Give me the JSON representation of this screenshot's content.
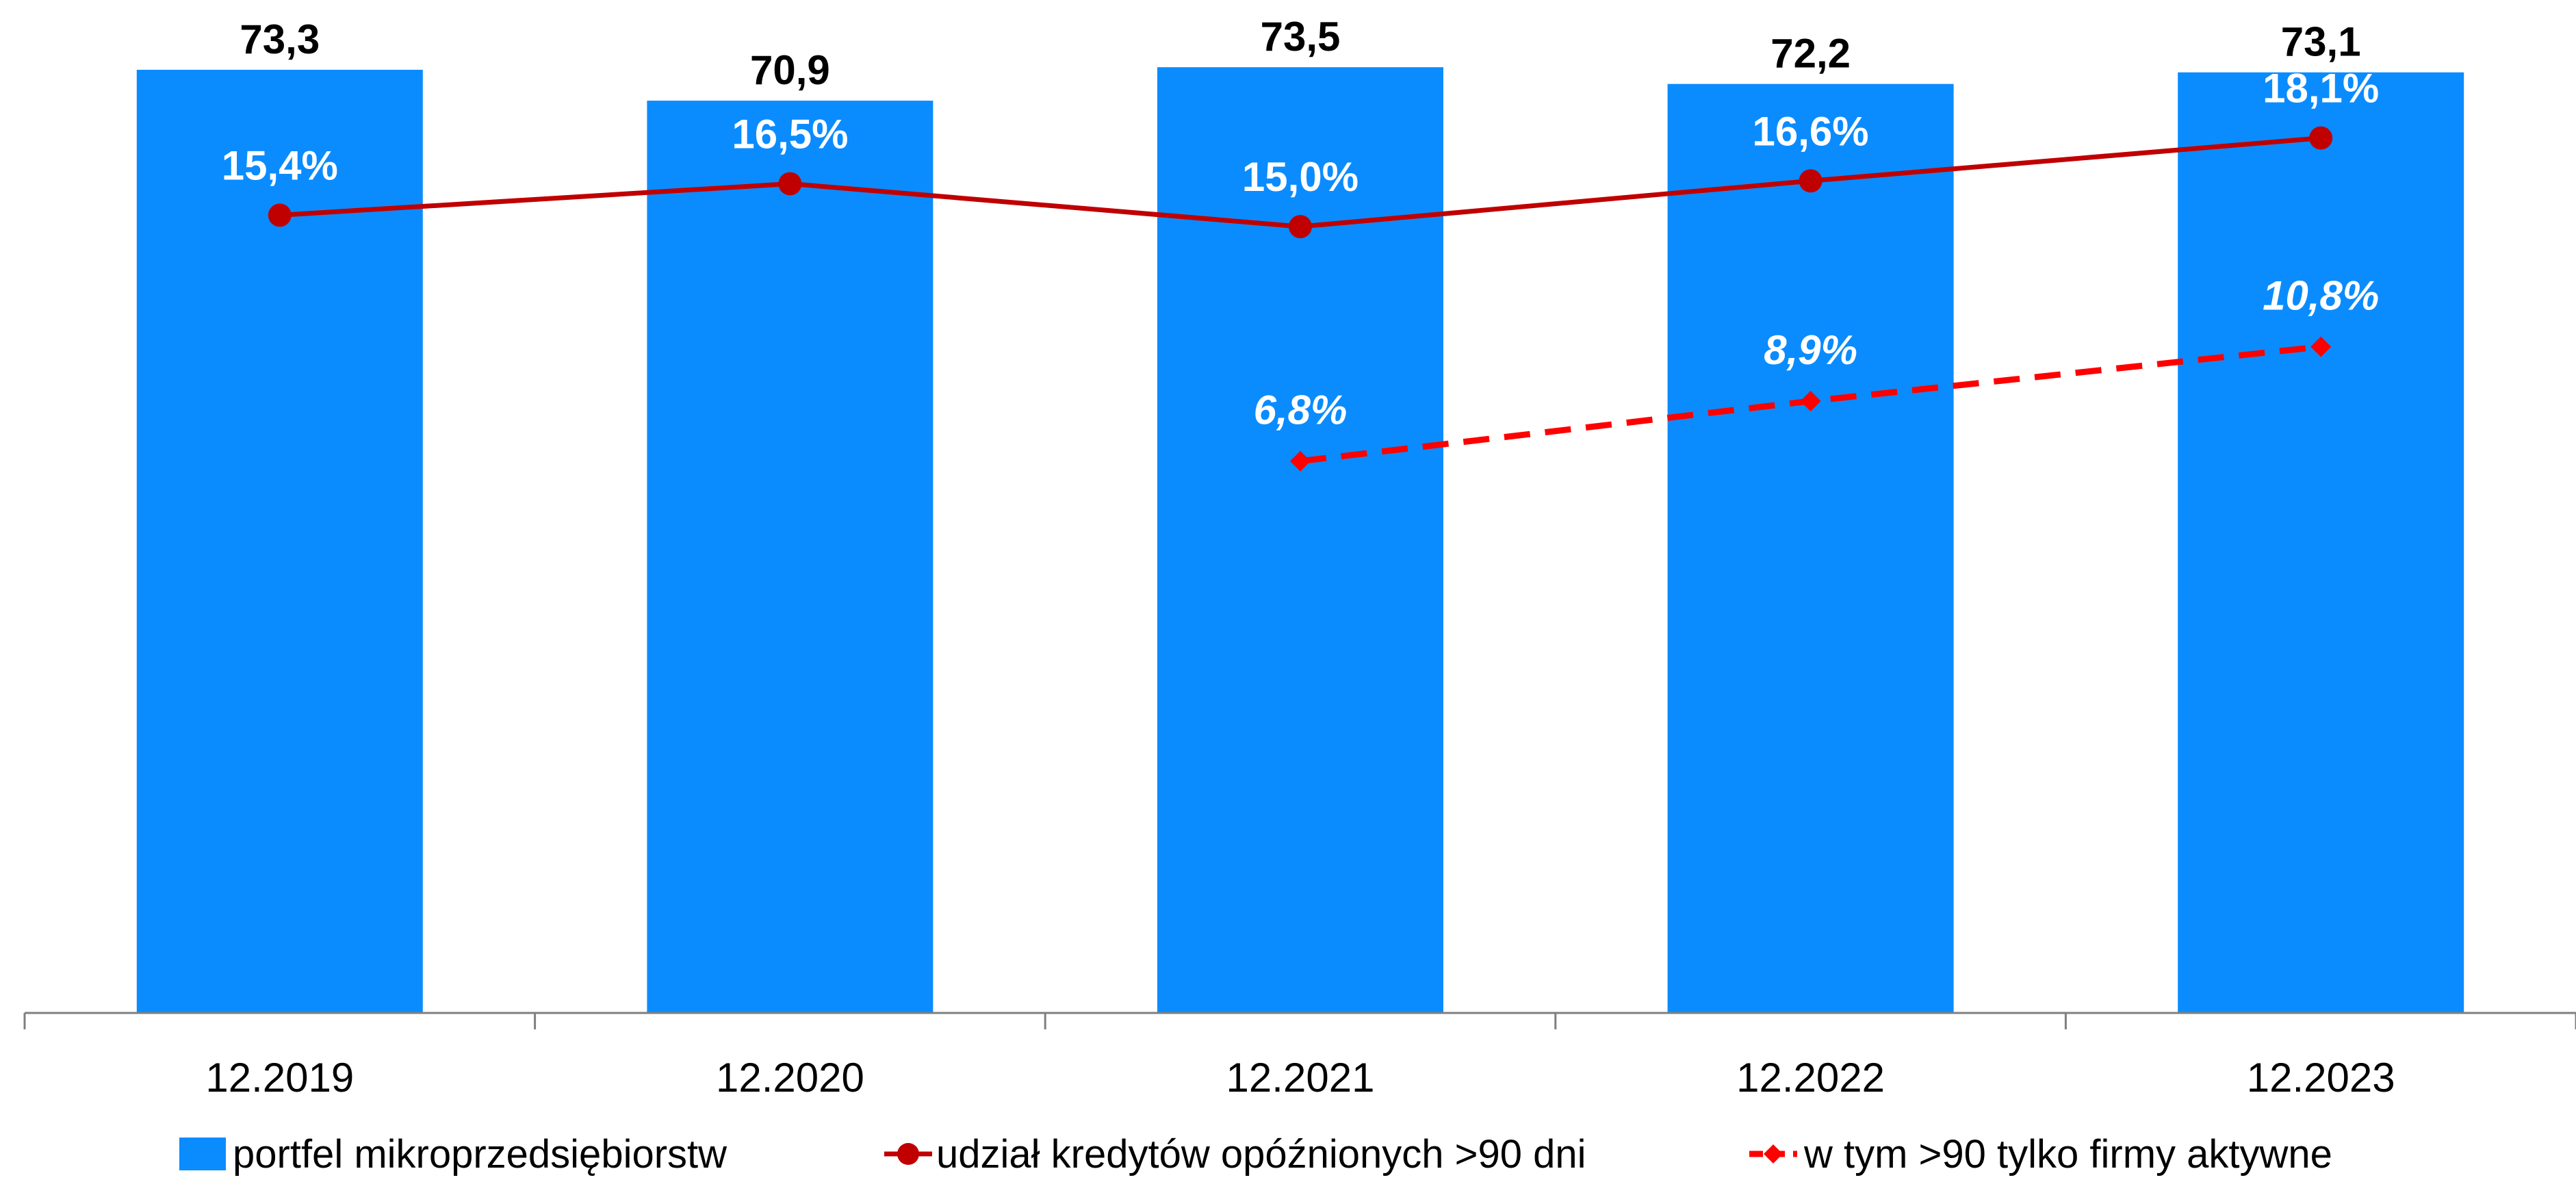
{
  "chart_data": {
    "type": "bar",
    "categories": [
      "12.2019",
      "12.2020",
      "12.2021",
      "12.2022",
      "12.2023"
    ],
    "series": [
      {
        "name": "portfel mikroprzedsiębiorstw",
        "type": "bar",
        "axis": "left",
        "values": [
          73.3,
          70.9,
          73.5,
          72.2,
          73.1
        ],
        "labels": [
          "73,3",
          "70,9",
          "73,5",
          "72,2",
          "73,1"
        ],
        "color": "#0A8CFF"
      },
      {
        "name": "udział kredytów opóźnionych >90 dni",
        "type": "line",
        "axis": "right",
        "values": [
          15.4,
          16.5,
          15.0,
          16.6,
          18.1
        ],
        "labels": [
          "15,4%",
          "16,5%",
          "15,0%",
          "16,6%",
          "18,1%"
        ],
        "color": "#C00000",
        "dash": "solid"
      },
      {
        "name": "w tym >90 tylko firmy aktywne",
        "type": "line",
        "axis": "right",
        "values": [
          null,
          null,
          6.8,
          8.9,
          10.8
        ],
        "labels": [
          null,
          null,
          "6,8%",
          "8,9%",
          "10,8%"
        ],
        "color": "#FF0000",
        "dash": "dashed"
      }
    ],
    "ylim": [
      0,
      75
    ],
    "y2lim": [
      -12.5,
      21.25
    ],
    "grid": false,
    "legend_position": "bottom"
  }
}
